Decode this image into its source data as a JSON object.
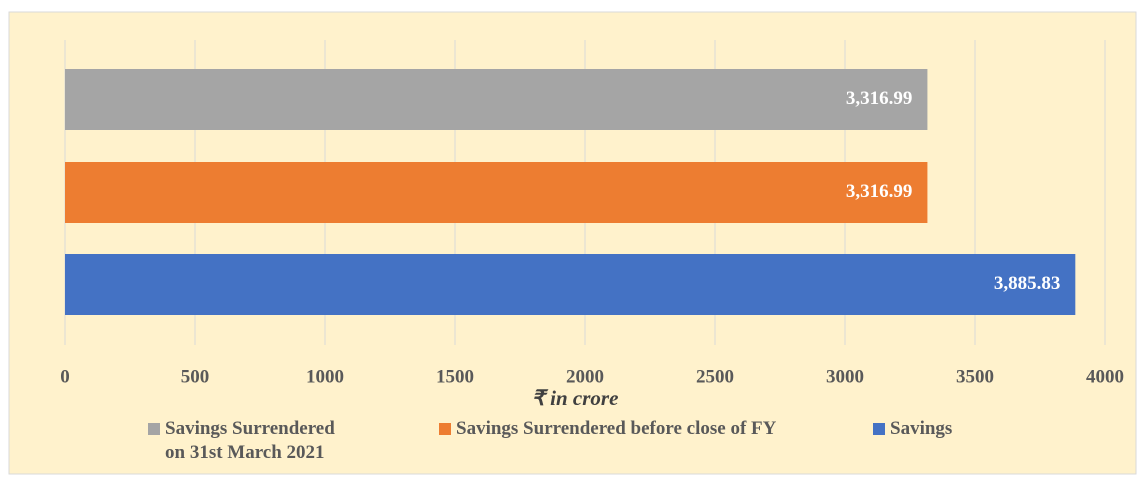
{
  "chart_data": {
    "type": "bar",
    "orientation": "horizontal",
    "xlabel": "₹ in crore",
    "series": [
      {
        "name": "Savings Surrendered on 31st March 2021",
        "color": "#a5a5a5",
        "values": [
          3316.99
        ],
        "value_labels": [
          "3,316.99"
        ]
      },
      {
        "name": "Savings Surrendered before close of FY",
        "color": "#ed7d31",
        "values": [
          3316.99
        ],
        "value_labels": [
          "3,316.99"
        ]
      },
      {
        "name": "Savings",
        "color": "#4472c4",
        "values": [
          3885.83
        ],
        "value_labels": [
          "3,885.83"
        ]
      }
    ],
    "xlim": [
      0,
      4000
    ],
    "xticks": [
      0,
      500,
      1000,
      1500,
      2000,
      2500,
      3000,
      3500,
      4000
    ],
    "grid": true,
    "legend": "bottom"
  }
}
